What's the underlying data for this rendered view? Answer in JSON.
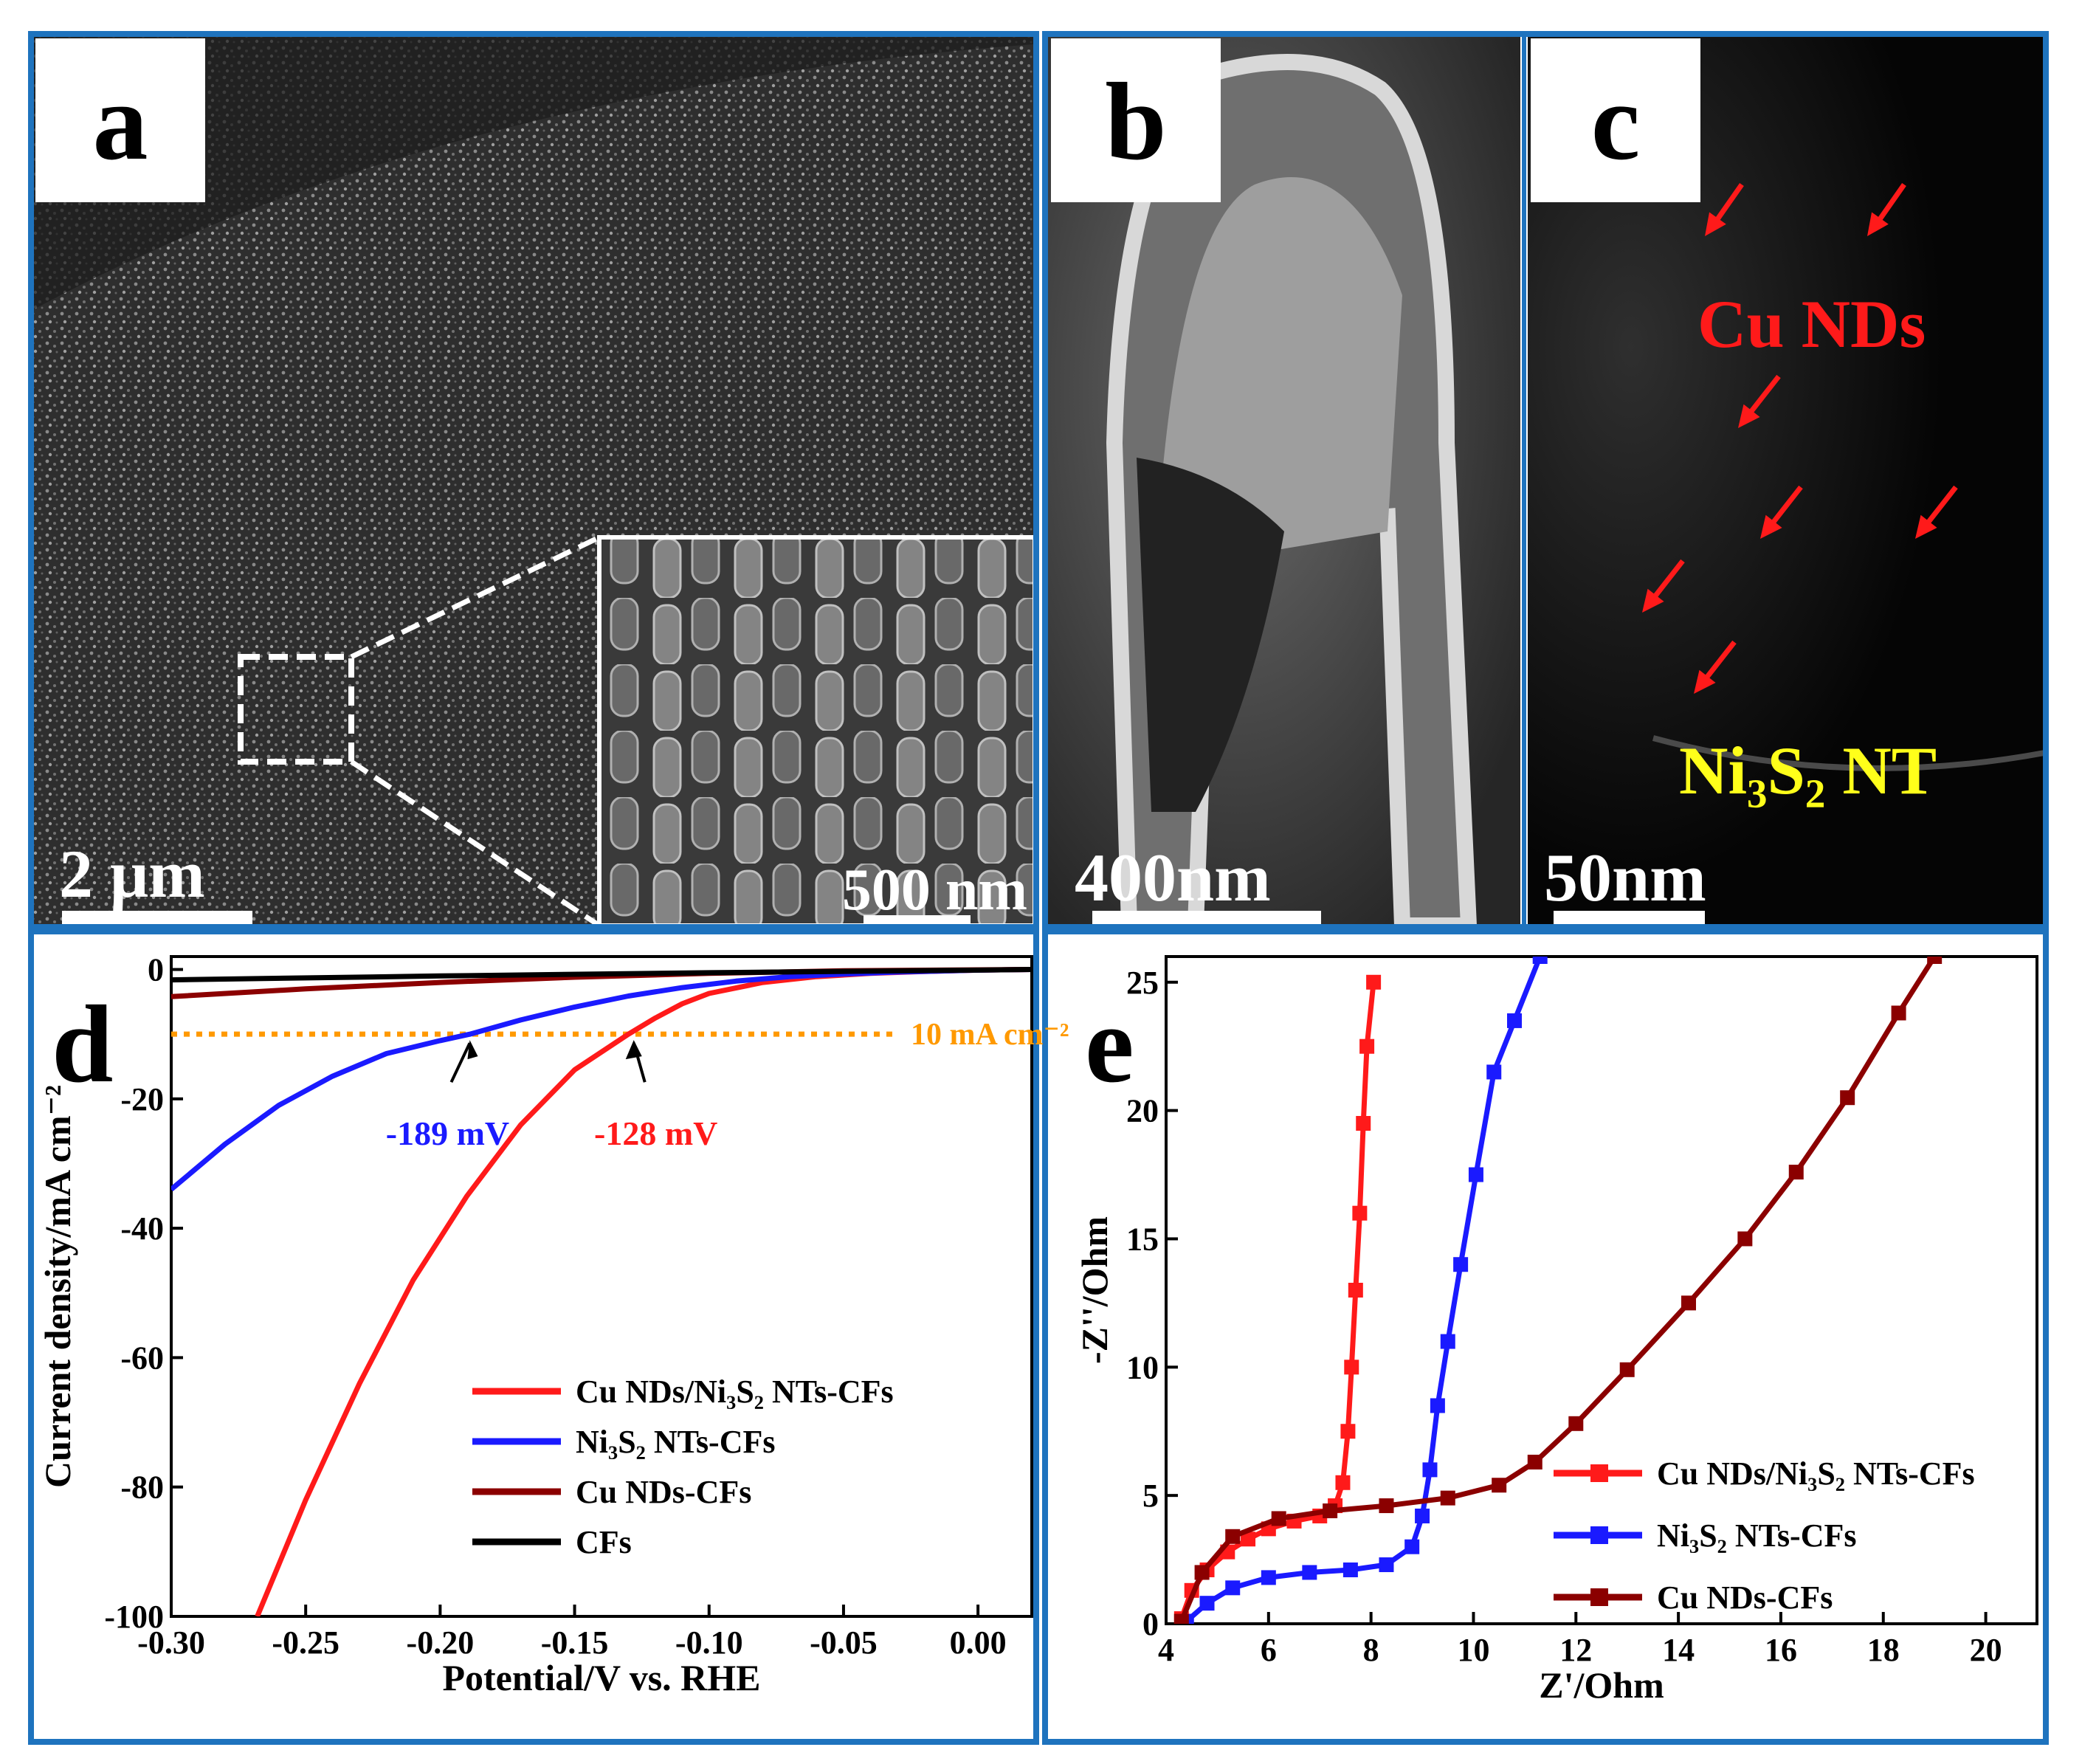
{
  "figure": {
    "accent": "#1e73be",
    "panels": [
      {
        "id": "a",
        "letter": "a",
        "scale_bar": "2 μm",
        "inset_scale_bar": "500 nm"
      },
      {
        "id": "b",
        "letter": "b",
        "scale_bar": "400nm"
      },
      {
        "id": "c",
        "letter": "c",
        "scale_bar": "50nm",
        "label_cu": "Cu NDs",
        "label_ni": "Ni₃S₂ NT",
        "arrow_color": "#ff1a1a",
        "label_ni_color": "#ffff1a"
      }
    ]
  },
  "chart_data": [
    {
      "panel": "d",
      "type": "line",
      "letter": "d",
      "xlabel": "Potential/V vs. RHE",
      "ylabel": "Current density/mA cm⁻²",
      "xlim": [
        -0.3,
        0.02
      ],
      "ylim": [
        -100,
        2
      ],
      "xticks": [
        -0.3,
        -0.25,
        -0.2,
        -0.15,
        -0.1,
        -0.05,
        0.0
      ],
      "xtick_labels": [
        "-0.30",
        "-0.25",
        "-0.20",
        "-0.15",
        "-0.10",
        "-0.05",
        "0.00"
      ],
      "yticks": [
        0,
        -20,
        -40,
        -60,
        -80,
        -100
      ],
      "ytick_labels": [
        "0",
        "-20",
        "-40",
        "-60",
        "-80",
        "-100"
      ],
      "reference_line": {
        "y": -10,
        "label": "10 mA cm⁻²",
        "color": "#ff9900"
      },
      "annotations": [
        {
          "text": "-189 mV",
          "x": -0.189,
          "y": -10,
          "color": "#1a1aff"
        },
        {
          "text": "-128 mV",
          "x": -0.128,
          "y": -10,
          "color": "#ff1a1a"
        }
      ],
      "legend_position": "bottom-right",
      "series": [
        {
          "name": "Cu NDs/Ni₃S₂ NTs-CFs",
          "color": "#ff1a1a",
          "x": [
            -0.268,
            -0.25,
            -0.23,
            -0.21,
            -0.19,
            -0.17,
            -0.15,
            -0.13,
            -0.12,
            -0.11,
            -0.1,
            -0.08,
            -0.06,
            -0.04,
            -0.02,
            0.0,
            0.02
          ],
          "y": [
            -100,
            -82,
            -64,
            -48,
            -35,
            -24,
            -15.5,
            -10,
            -7.5,
            -5.3,
            -3.7,
            -2.0,
            -1.1,
            -0.6,
            -0.3,
            -0.1,
            0
          ]
        },
        {
          "name": "Ni₃S₂ NTs-CFs",
          "color": "#1a1aff",
          "x": [
            -0.3,
            -0.28,
            -0.26,
            -0.24,
            -0.22,
            -0.2,
            -0.189,
            -0.17,
            -0.15,
            -0.13,
            -0.11,
            -0.09,
            -0.07,
            -0.05,
            -0.03,
            0.0,
            0.02
          ],
          "y": [
            -34,
            -27,
            -21,
            -16.5,
            -13,
            -11,
            -10,
            -7.8,
            -5.8,
            -4.1,
            -2.8,
            -1.8,
            -1.1,
            -0.7,
            -0.4,
            -0.1,
            0
          ]
        },
        {
          "name": "Cu NDs-CFs",
          "color": "#8b0000",
          "x": [
            -0.3,
            -0.25,
            -0.2,
            -0.15,
            -0.1,
            -0.05,
            0.0,
            0.02
          ],
          "y": [
            -4.2,
            -3.0,
            -2.0,
            -1.2,
            -0.6,
            -0.2,
            -0.05,
            0
          ]
        },
        {
          "name": "CFs",
          "color": "#000000",
          "x": [
            -0.3,
            -0.2,
            -0.1,
            0.0,
            0.02
          ],
          "y": [
            -1.6,
            -1.0,
            -0.5,
            -0.1,
            0
          ]
        }
      ]
    },
    {
      "panel": "e",
      "type": "line",
      "letter": "e",
      "xlabel": "Z'/Ohm",
      "ylabel": "-Z''/Ohm",
      "xlim": [
        4,
        21
      ],
      "ylim": [
        0,
        26
      ],
      "xticks": [
        4,
        6,
        8,
        10,
        12,
        14,
        16,
        18,
        20
      ],
      "xtick_labels": [
        "4",
        "6",
        "8",
        "10",
        "12",
        "14",
        "16",
        "18",
        "20"
      ],
      "yticks": [
        0,
        5,
        10,
        15,
        20,
        25
      ],
      "ytick_labels": [
        "0",
        "5",
        "10",
        "15",
        "20",
        "25"
      ],
      "legend_position": "bottom-right",
      "series": [
        {
          "name": "Cu NDs/Ni₃S₂ NTs-CFs",
          "color": "#ff1a1a",
          "x": [
            4.3,
            4.5,
            4.8,
            5.2,
            5.6,
            6.0,
            6.5,
            7.0,
            7.3,
            7.45,
            7.55,
            7.62,
            7.7,
            7.78,
            7.85,
            7.92,
            8.05
          ],
          "y": [
            0.2,
            1.3,
            2.1,
            2.8,
            3.3,
            3.7,
            4.0,
            4.2,
            4.6,
            5.5,
            7.5,
            10.0,
            13.0,
            16.0,
            19.5,
            22.5,
            25.0
          ]
        },
        {
          "name": "Ni₃S₂ NTs-CFs",
          "color": "#1a1aff",
          "x": [
            4.4,
            4.8,
            5.3,
            6.0,
            6.8,
            7.6,
            8.3,
            8.8,
            9.0,
            9.15,
            9.3,
            9.5,
            9.75,
            10.05,
            10.4,
            10.8,
            11.3
          ],
          "y": [
            0.1,
            0.8,
            1.4,
            1.8,
            2.0,
            2.1,
            2.3,
            3.0,
            4.2,
            6.0,
            8.5,
            11.0,
            14.0,
            17.5,
            21.5,
            23.5,
            26.0
          ]
        },
        {
          "name": "Cu NDs-CFs",
          "color": "#8b0000",
          "x": [
            4.3,
            4.7,
            5.3,
            6.2,
            7.2,
            8.3,
            9.5,
            10.5,
            11.2,
            12.0,
            13.0,
            14.2,
            15.3,
            16.3,
            17.3,
            18.3,
            19.0
          ],
          "y": [
            0.1,
            2.0,
            3.4,
            4.1,
            4.4,
            4.6,
            4.9,
            5.4,
            6.3,
            7.8,
            9.9,
            12.5,
            15.0,
            17.6,
            20.5,
            23.8,
            26.0
          ]
        }
      ]
    }
  ]
}
